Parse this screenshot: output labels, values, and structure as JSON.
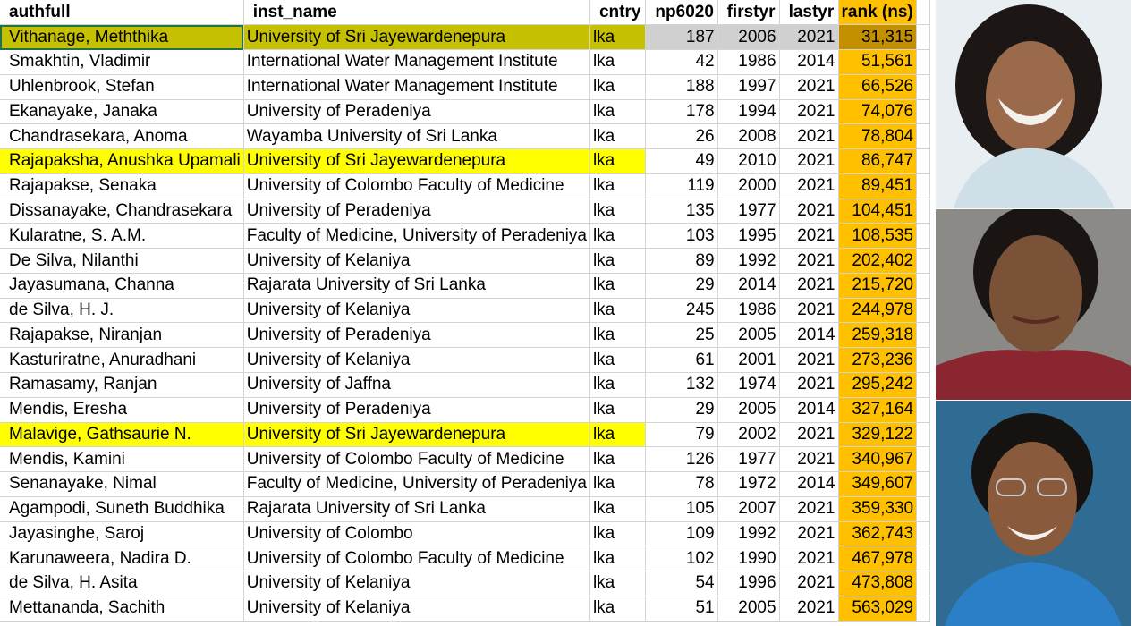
{
  "columns": [
    "authfull",
    "inst_name",
    "cntry",
    "np6020",
    "firstyr",
    "lastyr",
    "rank (ns)"
  ],
  "rows": [
    {
      "authfull": "Vithanage, Meththika",
      "inst_name": "University of Sri Jayewardenepura",
      "cntry": "lka",
      "np6020": "187",
      "firstyr": "2006",
      "lastyr": "2021",
      "rank": "31,315",
      "style": "selected"
    },
    {
      "authfull": "Smakhtin, Vladimir",
      "inst_name": "International Water Management Institute",
      "cntry": "lka",
      "np6020": "42",
      "firstyr": "1986",
      "lastyr": "2014",
      "rank": "51,561",
      "style": ""
    },
    {
      "authfull": "Uhlenbrook, Stefan",
      "inst_name": "International Water Management Institute",
      "cntry": "lka",
      "np6020": "188",
      "firstyr": "1997",
      "lastyr": "2021",
      "rank": "66,526",
      "style": ""
    },
    {
      "authfull": "Ekanayake, Janaka",
      "inst_name": "University of Peradeniya",
      "cntry": "lka",
      "np6020": "178",
      "firstyr": "1994",
      "lastyr": "2021",
      "rank": "74,076",
      "style": ""
    },
    {
      "authfull": "Chandrasekara, Anoma",
      "inst_name": "Wayamba University of Sri Lanka",
      "cntry": "lka",
      "np6020": "26",
      "firstyr": "2008",
      "lastyr": "2021",
      "rank": "78,804",
      "style": ""
    },
    {
      "authfull": "Rajapaksha, Anushka Upamali",
      "inst_name": "University of Sri Jayewardenepura",
      "cntry": "lka",
      "np6020": "49",
      "firstyr": "2010",
      "lastyr": "2021",
      "rank": "86,747",
      "style": "highlight"
    },
    {
      "authfull": "Rajapakse, Senaka",
      "inst_name": "University of Colombo Faculty of Medicine",
      "cntry": "lka",
      "np6020": "119",
      "firstyr": "2000",
      "lastyr": "2021",
      "rank": "89,451",
      "style": ""
    },
    {
      "authfull": "Dissanayake, Chandrasekara",
      "inst_name": "University of Peradeniya",
      "cntry": "lka",
      "np6020": "135",
      "firstyr": "1977",
      "lastyr": "2021",
      "rank": "104,451",
      "style": ""
    },
    {
      "authfull": "Kularatne, S. A.M.",
      "inst_name": "Faculty of Medicine, University of Peradeniya",
      "cntry": "lka",
      "np6020": "103",
      "firstyr": "1995",
      "lastyr": "2021",
      "rank": "108,535",
      "style": ""
    },
    {
      "authfull": "De Silva, Nilanthi",
      "inst_name": "University of Kelaniya",
      "cntry": "lka",
      "np6020": "89",
      "firstyr": "1992",
      "lastyr": "2021",
      "rank": "202,402",
      "style": ""
    },
    {
      "authfull": "Jayasumana, Channa",
      "inst_name": "Rajarata University of Sri Lanka",
      "cntry": "lka",
      "np6020": "29",
      "firstyr": "2014",
      "lastyr": "2021",
      "rank": "215,720",
      "style": ""
    },
    {
      "authfull": "de Silva, H. J.",
      "inst_name": "University of Kelaniya",
      "cntry": "lka",
      "np6020": "245",
      "firstyr": "1986",
      "lastyr": "2021",
      "rank": "244,978",
      "style": ""
    },
    {
      "authfull": "Rajapakse, Niranjan",
      "inst_name": "University of Peradeniya",
      "cntry": "lka",
      "np6020": "25",
      "firstyr": "2005",
      "lastyr": "2014",
      "rank": "259,318",
      "style": ""
    },
    {
      "authfull": "Kasturiratne, Anuradhani",
      "inst_name": "University of Kelaniya",
      "cntry": "lka",
      "np6020": "61",
      "firstyr": "2001",
      "lastyr": "2021",
      "rank": "273,236",
      "style": ""
    },
    {
      "authfull": "Ramasamy, Ranjan",
      "inst_name": "University of Jaffna",
      "cntry": "lka",
      "np6020": "132",
      "firstyr": "1974",
      "lastyr": "2021",
      "rank": "295,242",
      "style": ""
    },
    {
      "authfull": "Mendis, Eresha",
      "inst_name": "University of Peradeniya",
      "cntry": "lka",
      "np6020": "29",
      "firstyr": "2005",
      "lastyr": "2014",
      "rank": "327,164",
      "style": ""
    },
    {
      "authfull": "Malavige, Gathsaurie N.",
      "inst_name": "University of Sri Jayewardenepura",
      "cntry": "lka",
      "np6020": "79",
      "firstyr": "2002",
      "lastyr": "2021",
      "rank": "329,122",
      "style": "highlight"
    },
    {
      "authfull": "Mendis, Kamini",
      "inst_name": "University of Colombo Faculty of Medicine",
      "cntry": "lka",
      "np6020": "126",
      "firstyr": "1977",
      "lastyr": "2021",
      "rank": "340,967",
      "style": ""
    },
    {
      "authfull": "Senanayake, Nimal",
      "inst_name": "Faculty of Medicine, University of Peradeniya",
      "cntry": "lka",
      "np6020": "78",
      "firstyr": "1972",
      "lastyr": "2014",
      "rank": "349,607",
      "style": ""
    },
    {
      "authfull": "Agampodi, Suneth Buddhika",
      "inst_name": "Rajarata University of Sri Lanka",
      "cntry": "lka",
      "np6020": "105",
      "firstyr": "2007",
      "lastyr": "2021",
      "rank": "359,330",
      "style": ""
    },
    {
      "authfull": "Jayasinghe, Saroj",
      "inst_name": "University of Colombo",
      "cntry": "lka",
      "np6020": "109",
      "firstyr": "1992",
      "lastyr": "2021",
      "rank": "362,743",
      "style": ""
    },
    {
      "authfull": "Karunaweera, Nadira D.",
      "inst_name": "University of Colombo Faculty of Medicine",
      "cntry": "lka",
      "np6020": "102",
      "firstyr": "1990",
      "lastyr": "2021",
      "rank": "467,978",
      "style": ""
    },
    {
      "authfull": "de Silva, H. Asita",
      "inst_name": "University of Kelaniya",
      "cntry": "lka",
      "np6020": "54",
      "firstyr": "1996",
      "lastyr": "2021",
      "rank": "473,808",
      "style": ""
    },
    {
      "authfull": "Mettananda, Sachith",
      "inst_name": "University of Kelaniya",
      "cntry": "lka",
      "np6020": "51",
      "firstyr": "2005",
      "lastyr": "2021",
      "rank": "563,029",
      "style": ""
    }
  ],
  "colors": {
    "rank_fill": "#ffc000",
    "highlight_fill": "#ffff00",
    "selection_border": "#217346"
  },
  "photos": [
    {
      "icon": "portrait-photo-icon"
    },
    {
      "icon": "portrait-photo-icon"
    },
    {
      "icon": "portrait-photo-icon"
    }
  ]
}
